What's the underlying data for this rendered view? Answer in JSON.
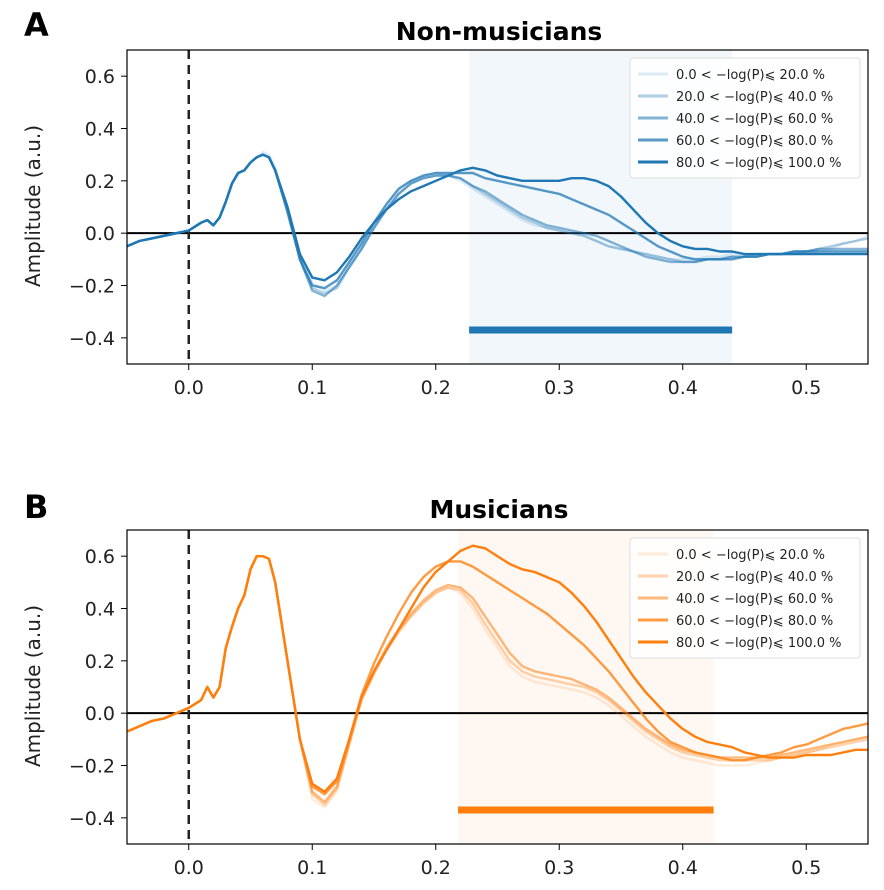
{
  "chart_data": [
    {
      "type": "line",
      "panel": "A",
      "title": "Non-musicians",
      "xlabel": "",
      "ylabel": "Amplitude (a.u.)",
      "xlim": [
        -0.05,
        0.55
      ],
      "ylim": [
        -0.5,
        0.7
      ],
      "xticks": [
        0.0,
        0.1,
        0.2,
        0.3,
        0.4,
        0.5
      ],
      "xtick_labels": [
        "0.0",
        "0.1",
        "0.2",
        "0.3",
        "0.4",
        "0.5"
      ],
      "yticks": [
        -0.4,
        -0.2,
        0.0,
        0.2,
        0.4,
        0.6
      ],
      "ytick_labels": [
        "−0.4",
        "−0.2",
        "0.0",
        "0.2",
        "0.4",
        "0.6"
      ],
      "stimulus_onset": 0.0,
      "significance_window": [
        0.227,
        0.44
      ],
      "significance_bar_y": -0.37,
      "legend_position": "top-right",
      "color": "#1f77b4",
      "x": [
        -0.05,
        -0.04,
        -0.03,
        -0.02,
        -0.01,
        0.0,
        0.01,
        0.015,
        0.02,
        0.025,
        0.03,
        0.035,
        0.04,
        0.045,
        0.05,
        0.055,
        0.06,
        0.065,
        0.07,
        0.08,
        0.09,
        0.1,
        0.11,
        0.12,
        0.13,
        0.14,
        0.15,
        0.16,
        0.17,
        0.18,
        0.19,
        0.2,
        0.21,
        0.22,
        0.23,
        0.24,
        0.25,
        0.26,
        0.27,
        0.28,
        0.29,
        0.3,
        0.31,
        0.32,
        0.33,
        0.34,
        0.35,
        0.36,
        0.37,
        0.38,
        0.39,
        0.4,
        0.41,
        0.42,
        0.43,
        0.44,
        0.45,
        0.46,
        0.47,
        0.48,
        0.49,
        0.5,
        0.51,
        0.52,
        0.53,
        0.54,
        0.55
      ],
      "series": [
        {
          "name": "0.0 < −log(P)⩽ 20.0 %",
          "opacity": 0.15,
          "values": [
            -0.05,
            -0.03,
            -0.02,
            -0.01,
            0.0,
            0.01,
            0.04,
            0.05,
            0.03,
            0.06,
            0.12,
            0.19,
            0.23,
            0.24,
            0.27,
            0.29,
            0.31,
            0.3,
            0.25,
            0.1,
            -0.08,
            -0.19,
            -0.22,
            -0.2,
            -0.12,
            -0.05,
            0.03,
            0.1,
            0.16,
            0.2,
            0.22,
            0.23,
            0.22,
            0.2,
            0.17,
            0.14,
            0.11,
            0.08,
            0.05,
            0.03,
            0.02,
            0.01,
            0.0,
            -0.01,
            -0.03,
            -0.05,
            -0.06,
            -0.07,
            -0.08,
            -0.09,
            -0.1,
            -0.1,
            -0.1,
            -0.09,
            -0.09,
            -0.08,
            -0.08,
            -0.08,
            -0.08,
            -0.08,
            -0.08,
            -0.08,
            -0.07,
            -0.06,
            -0.04,
            -0.03,
            -0.01
          ]
        },
        {
          "name": "20.0 < −log(P)⩽ 40.0 %",
          "opacity": 0.35,
          "values": [
            -0.05,
            -0.03,
            -0.02,
            -0.01,
            0.0,
            0.01,
            0.04,
            0.05,
            0.03,
            0.06,
            0.12,
            0.19,
            0.23,
            0.24,
            0.27,
            0.29,
            0.3,
            0.29,
            0.24,
            0.08,
            -0.1,
            -0.21,
            -0.23,
            -0.21,
            -0.13,
            -0.06,
            0.02,
            0.09,
            0.15,
            0.19,
            0.21,
            0.22,
            0.22,
            0.21,
            0.18,
            0.15,
            0.12,
            0.09,
            0.06,
            0.04,
            0.02,
            0.01,
            0.0,
            -0.01,
            -0.03,
            -0.05,
            -0.06,
            -0.07,
            -0.08,
            -0.09,
            -0.1,
            -0.11,
            -0.11,
            -0.1,
            -0.1,
            -0.09,
            -0.09,
            -0.08,
            -0.08,
            -0.08,
            -0.08,
            -0.07,
            -0.06,
            -0.05,
            -0.04,
            -0.03,
            -0.02
          ]
        },
        {
          "name": "40.0 < −log(P)⩽ 60.0 %",
          "opacity": 0.55,
          "values": [
            -0.05,
            -0.03,
            -0.02,
            -0.01,
            0.0,
            0.01,
            0.04,
            0.05,
            0.03,
            0.06,
            0.12,
            0.19,
            0.23,
            0.24,
            0.27,
            0.29,
            0.3,
            0.29,
            0.24,
            0.08,
            -0.1,
            -0.22,
            -0.24,
            -0.2,
            -0.13,
            -0.06,
            0.02,
            0.09,
            0.15,
            0.19,
            0.21,
            0.22,
            0.22,
            0.21,
            0.18,
            0.16,
            0.13,
            0.1,
            0.07,
            0.05,
            0.03,
            0.02,
            0.01,
            0.0,
            -0.01,
            -0.03,
            -0.05,
            -0.07,
            -0.09,
            -0.1,
            -0.11,
            -0.11,
            -0.11,
            -0.1,
            -0.1,
            -0.09,
            -0.09,
            -0.09,
            -0.08,
            -0.08,
            -0.07,
            -0.07,
            -0.06,
            -0.06,
            -0.06,
            -0.06,
            -0.06
          ]
        },
        {
          "name": "60.0 < −log(P)⩽ 80.0 %",
          "opacity": 0.75,
          "values": [
            -0.05,
            -0.03,
            -0.02,
            -0.01,
            0.0,
            0.01,
            0.04,
            0.05,
            0.03,
            0.06,
            0.12,
            0.19,
            0.23,
            0.24,
            0.27,
            0.29,
            0.3,
            0.29,
            0.24,
            0.09,
            -0.1,
            -0.2,
            -0.21,
            -0.18,
            -0.11,
            -0.04,
            0.04,
            0.11,
            0.17,
            0.2,
            0.22,
            0.23,
            0.23,
            0.23,
            0.23,
            0.21,
            0.2,
            0.19,
            0.18,
            0.17,
            0.16,
            0.15,
            0.13,
            0.11,
            0.09,
            0.07,
            0.04,
            0.01,
            -0.02,
            -0.05,
            -0.07,
            -0.09,
            -0.1,
            -0.1,
            -0.1,
            -0.1,
            -0.09,
            -0.09,
            -0.08,
            -0.08,
            -0.07,
            -0.07,
            -0.07,
            -0.07,
            -0.07,
            -0.07,
            -0.07
          ]
        },
        {
          "name": "80.0 < −log(P)⩽ 100.0 %",
          "opacity": 1.0,
          "values": [
            -0.05,
            -0.03,
            -0.02,
            -0.01,
            0.0,
            0.01,
            0.04,
            0.05,
            0.03,
            0.06,
            0.12,
            0.19,
            0.23,
            0.24,
            0.27,
            0.29,
            0.3,
            0.29,
            0.24,
            0.1,
            -0.08,
            -0.17,
            -0.18,
            -0.15,
            -0.09,
            -0.02,
            0.04,
            0.09,
            0.13,
            0.16,
            0.18,
            0.2,
            0.22,
            0.24,
            0.25,
            0.24,
            0.22,
            0.21,
            0.2,
            0.2,
            0.2,
            0.2,
            0.21,
            0.21,
            0.2,
            0.18,
            0.14,
            0.09,
            0.04,
            0.0,
            -0.03,
            -0.05,
            -0.06,
            -0.06,
            -0.07,
            -0.07,
            -0.08,
            -0.08,
            -0.08,
            -0.08,
            -0.08,
            -0.08,
            -0.08,
            -0.08,
            -0.08,
            -0.08,
            -0.08
          ]
        }
      ]
    },
    {
      "type": "line",
      "panel": "B",
      "title": "Musicians",
      "xlabel": "",
      "ylabel": "Amplitude (a.u.)",
      "xlim": [
        -0.05,
        0.55
      ],
      "ylim": [
        -0.5,
        0.7
      ],
      "xticks": [
        0.0,
        0.1,
        0.2,
        0.3,
        0.4,
        0.5
      ],
      "xtick_labels": [
        "0.0",
        "0.1",
        "0.2",
        "0.3",
        "0.4",
        "0.5"
      ],
      "yticks": [
        -0.4,
        -0.2,
        0.0,
        0.2,
        0.4,
        0.6
      ],
      "ytick_labels": [
        "−0.4",
        "−0.2",
        "0.0",
        "0.2",
        "0.4",
        "0.6"
      ],
      "stimulus_onset": 0.0,
      "significance_window": [
        0.218,
        0.425
      ],
      "significance_bar_y": -0.37,
      "legend_position": "top-right",
      "color": "#ff7f0e",
      "x": [
        -0.05,
        -0.04,
        -0.03,
        -0.02,
        -0.01,
        0.0,
        0.01,
        0.015,
        0.02,
        0.025,
        0.03,
        0.035,
        0.04,
        0.045,
        0.05,
        0.055,
        0.06,
        0.065,
        0.07,
        0.08,
        0.09,
        0.1,
        0.11,
        0.12,
        0.13,
        0.14,
        0.15,
        0.16,
        0.17,
        0.18,
        0.19,
        0.2,
        0.21,
        0.22,
        0.23,
        0.24,
        0.25,
        0.26,
        0.27,
        0.28,
        0.29,
        0.3,
        0.31,
        0.32,
        0.33,
        0.34,
        0.35,
        0.36,
        0.37,
        0.38,
        0.39,
        0.4,
        0.41,
        0.42,
        0.43,
        0.44,
        0.45,
        0.46,
        0.47,
        0.48,
        0.49,
        0.5,
        0.51,
        0.52,
        0.53,
        0.54,
        0.55
      ],
      "series": [
        {
          "name": "0.0 < −log(P)⩽ 20.0 %",
          "opacity": 0.15,
          "values": [
            -0.07,
            -0.05,
            -0.03,
            -0.02,
            0.0,
            0.02,
            0.05,
            0.1,
            0.06,
            0.1,
            0.25,
            0.33,
            0.4,
            0.45,
            0.55,
            0.6,
            0.6,
            0.59,
            0.5,
            0.2,
            -0.1,
            -0.33,
            -0.36,
            -0.3,
            -0.12,
            0.05,
            0.15,
            0.24,
            0.31,
            0.37,
            0.42,
            0.46,
            0.48,
            0.46,
            0.4,
            0.32,
            0.25,
            0.18,
            0.14,
            0.12,
            0.11,
            0.1,
            0.09,
            0.08,
            0.06,
            0.03,
            -0.01,
            -0.05,
            -0.09,
            -0.12,
            -0.15,
            -0.17,
            -0.18,
            -0.19,
            -0.2,
            -0.2,
            -0.2,
            -0.19,
            -0.18,
            -0.17,
            -0.16,
            -0.15,
            -0.14,
            -0.12,
            -0.11,
            -0.1,
            -0.09
          ]
        },
        {
          "name": "20.0 < −log(P)⩽ 40.0 %",
          "opacity": 0.35,
          "values": [
            -0.07,
            -0.05,
            -0.03,
            -0.02,
            0.0,
            0.02,
            0.05,
            0.1,
            0.06,
            0.1,
            0.25,
            0.33,
            0.4,
            0.45,
            0.55,
            0.6,
            0.6,
            0.59,
            0.5,
            0.2,
            -0.1,
            -0.31,
            -0.35,
            -0.29,
            -0.12,
            0.05,
            0.15,
            0.24,
            0.31,
            0.37,
            0.42,
            0.46,
            0.48,
            0.47,
            0.42,
            0.34,
            0.27,
            0.2,
            0.16,
            0.14,
            0.13,
            0.12,
            0.11,
            0.1,
            0.08,
            0.05,
            0.01,
            -0.03,
            -0.07,
            -0.1,
            -0.13,
            -0.15,
            -0.16,
            -0.17,
            -0.18,
            -0.18,
            -0.18,
            -0.18,
            -0.18,
            -0.17,
            -0.16,
            -0.15,
            -0.14,
            -0.13,
            -0.12,
            -0.11,
            -0.1
          ]
        },
        {
          "name": "40.0 < −log(P)⩽ 60.0 %",
          "opacity": 0.55,
          "values": [
            -0.07,
            -0.05,
            -0.03,
            -0.02,
            0.0,
            0.02,
            0.05,
            0.1,
            0.06,
            0.1,
            0.25,
            0.33,
            0.4,
            0.45,
            0.55,
            0.6,
            0.6,
            0.59,
            0.5,
            0.2,
            -0.1,
            -0.3,
            -0.34,
            -0.28,
            -0.11,
            0.06,
            0.16,
            0.25,
            0.32,
            0.38,
            0.43,
            0.47,
            0.49,
            0.48,
            0.44,
            0.37,
            0.3,
            0.23,
            0.18,
            0.16,
            0.15,
            0.14,
            0.13,
            0.11,
            0.09,
            0.06,
            0.02,
            -0.02,
            -0.06,
            -0.09,
            -0.12,
            -0.14,
            -0.15,
            -0.16,
            -0.17,
            -0.17,
            -0.17,
            -0.17,
            -0.17,
            -0.16,
            -0.15,
            -0.14,
            -0.13,
            -0.12,
            -0.11,
            -0.1,
            -0.09
          ]
        },
        {
          "name": "60.0 < −log(P)⩽ 80.0 %",
          "opacity": 0.78,
          "values": [
            -0.07,
            -0.05,
            -0.03,
            -0.02,
            0.0,
            0.02,
            0.05,
            0.1,
            0.06,
            0.1,
            0.25,
            0.33,
            0.4,
            0.45,
            0.55,
            0.6,
            0.6,
            0.59,
            0.5,
            0.2,
            -0.1,
            -0.28,
            -0.31,
            -0.26,
            -0.1,
            0.07,
            0.19,
            0.29,
            0.38,
            0.46,
            0.52,
            0.56,
            0.58,
            0.58,
            0.56,
            0.53,
            0.5,
            0.47,
            0.44,
            0.41,
            0.38,
            0.34,
            0.3,
            0.26,
            0.21,
            0.16,
            0.1,
            0.04,
            -0.02,
            -0.07,
            -0.11,
            -0.13,
            -0.15,
            -0.16,
            -0.17,
            -0.18,
            -0.18,
            -0.17,
            -0.16,
            -0.15,
            -0.13,
            -0.12,
            -0.1,
            -0.08,
            -0.06,
            -0.05,
            -0.04
          ]
        },
        {
          "name": "80.0 < −log(P)⩽ 100.0 %",
          "opacity": 1.0,
          "values": [
            -0.07,
            -0.05,
            -0.03,
            -0.02,
            0.0,
            0.02,
            0.05,
            0.1,
            0.06,
            0.1,
            0.25,
            0.33,
            0.4,
            0.45,
            0.55,
            0.6,
            0.6,
            0.59,
            0.5,
            0.2,
            -0.1,
            -0.27,
            -0.3,
            -0.25,
            -0.1,
            0.06,
            0.16,
            0.24,
            0.32,
            0.4,
            0.48,
            0.54,
            0.58,
            0.62,
            0.64,
            0.63,
            0.6,
            0.57,
            0.55,
            0.54,
            0.52,
            0.5,
            0.46,
            0.41,
            0.35,
            0.28,
            0.21,
            0.14,
            0.08,
            0.03,
            -0.02,
            -0.06,
            -0.09,
            -0.11,
            -0.12,
            -0.13,
            -0.15,
            -0.16,
            -0.17,
            -0.17,
            -0.17,
            -0.16,
            -0.16,
            -0.16,
            -0.15,
            -0.14,
            -0.14
          ]
        }
      ]
    }
  ]
}
